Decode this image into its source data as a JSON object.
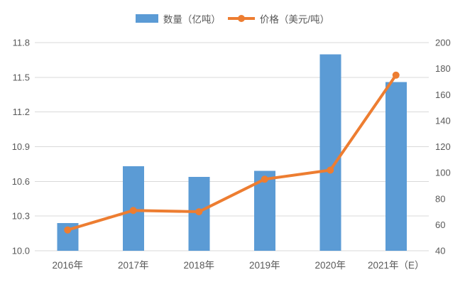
{
  "colors": {
    "bar": "#5B9BD5",
    "line": "#ED7D31",
    "grid": "#D9D9D9",
    "axis_text": "#595959",
    "background": "#FFFFFF"
  },
  "legend": {
    "quantity_label": "数量（亿吨）",
    "price_label": "价格（美元/吨）"
  },
  "chart_data": {
    "type": "bar+line combo",
    "title": "",
    "categories": [
      "2016年",
      "2017年",
      "2018年",
      "2019年",
      "2020年",
      "2021年（E）"
    ],
    "series": [
      {
        "name": "数量（亿吨）",
        "type": "bar",
        "axis": "left",
        "color": "#5B9BD5",
        "values": [
          10.24,
          10.73,
          10.64,
          10.69,
          11.7,
          11.46
        ]
      },
      {
        "name": "价格（美元/吨）",
        "type": "line",
        "axis": "right",
        "color": "#ED7D31",
        "values": [
          56,
          71,
          70,
          95,
          102,
          175
        ]
      }
    ],
    "left_axis": {
      "min": 10.0,
      "max": 11.8,
      "step": 0.3,
      "tick_labels": [
        "11.8",
        "11.5",
        "11.2",
        "10.9",
        "10.6",
        "10.3",
        "10.0"
      ]
    },
    "right_axis": {
      "min": 40,
      "max": 200,
      "step": 20,
      "tick_labels": [
        "200",
        "180",
        "160",
        "140",
        "120",
        "100",
        "80",
        "60",
        "40"
      ]
    },
    "grid": true,
    "legend_position": "top-center"
  }
}
